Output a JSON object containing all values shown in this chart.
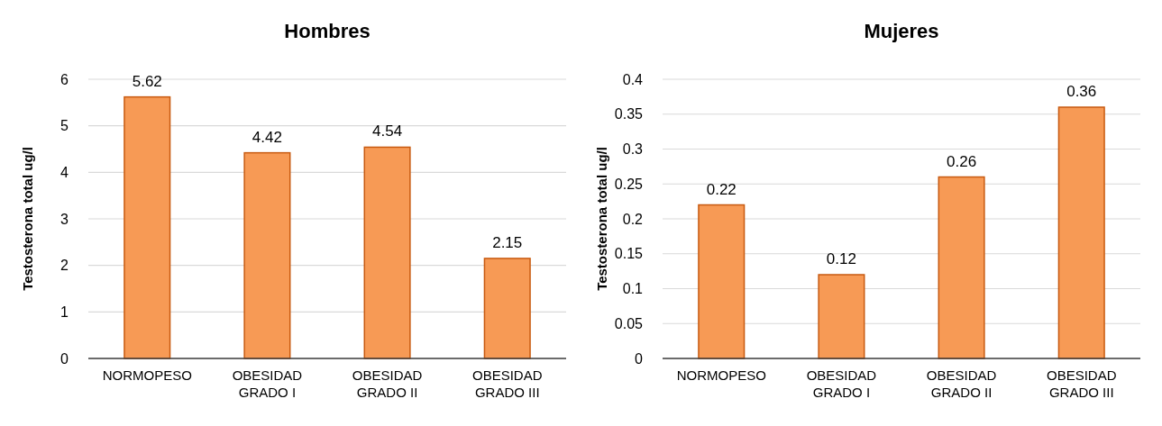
{
  "chart_data": [
    {
      "type": "bar",
      "title": "Hombres",
      "ylabel": "Testosterona total ug/l",
      "categories": [
        "NORMOPESO",
        "OBESIDAD GRADO I",
        "OBESIDAD GRADO II",
        "OBESIDAD GRADO III"
      ],
      "values": [
        5.62,
        4.42,
        4.54,
        2.15
      ],
      "color": "#f79a55",
      "ylim": [
        0,
        6
      ],
      "yticks": [
        0,
        1,
        2,
        3,
        4,
        5,
        6
      ],
      "grid": "y",
      "data_labels": true
    },
    {
      "type": "bar",
      "title": "Mujeres",
      "ylabel": "Testosterona total ug/l",
      "categories": [
        "NORMOPESO",
        "OBESIDAD GRADO I",
        "OBESIDAD GRADO II",
        "OBESIDAD GRADO III"
      ],
      "values": [
        0.22,
        0.12,
        0.26,
        0.36
      ],
      "color": "#f79a55",
      "ylim": [
        0,
        0.4
      ],
      "yticks": [
        0,
        0.05,
        0.1,
        0.15,
        0.2,
        0.25,
        0.3,
        0.35,
        0.4
      ],
      "grid": "y",
      "data_labels": true
    }
  ]
}
